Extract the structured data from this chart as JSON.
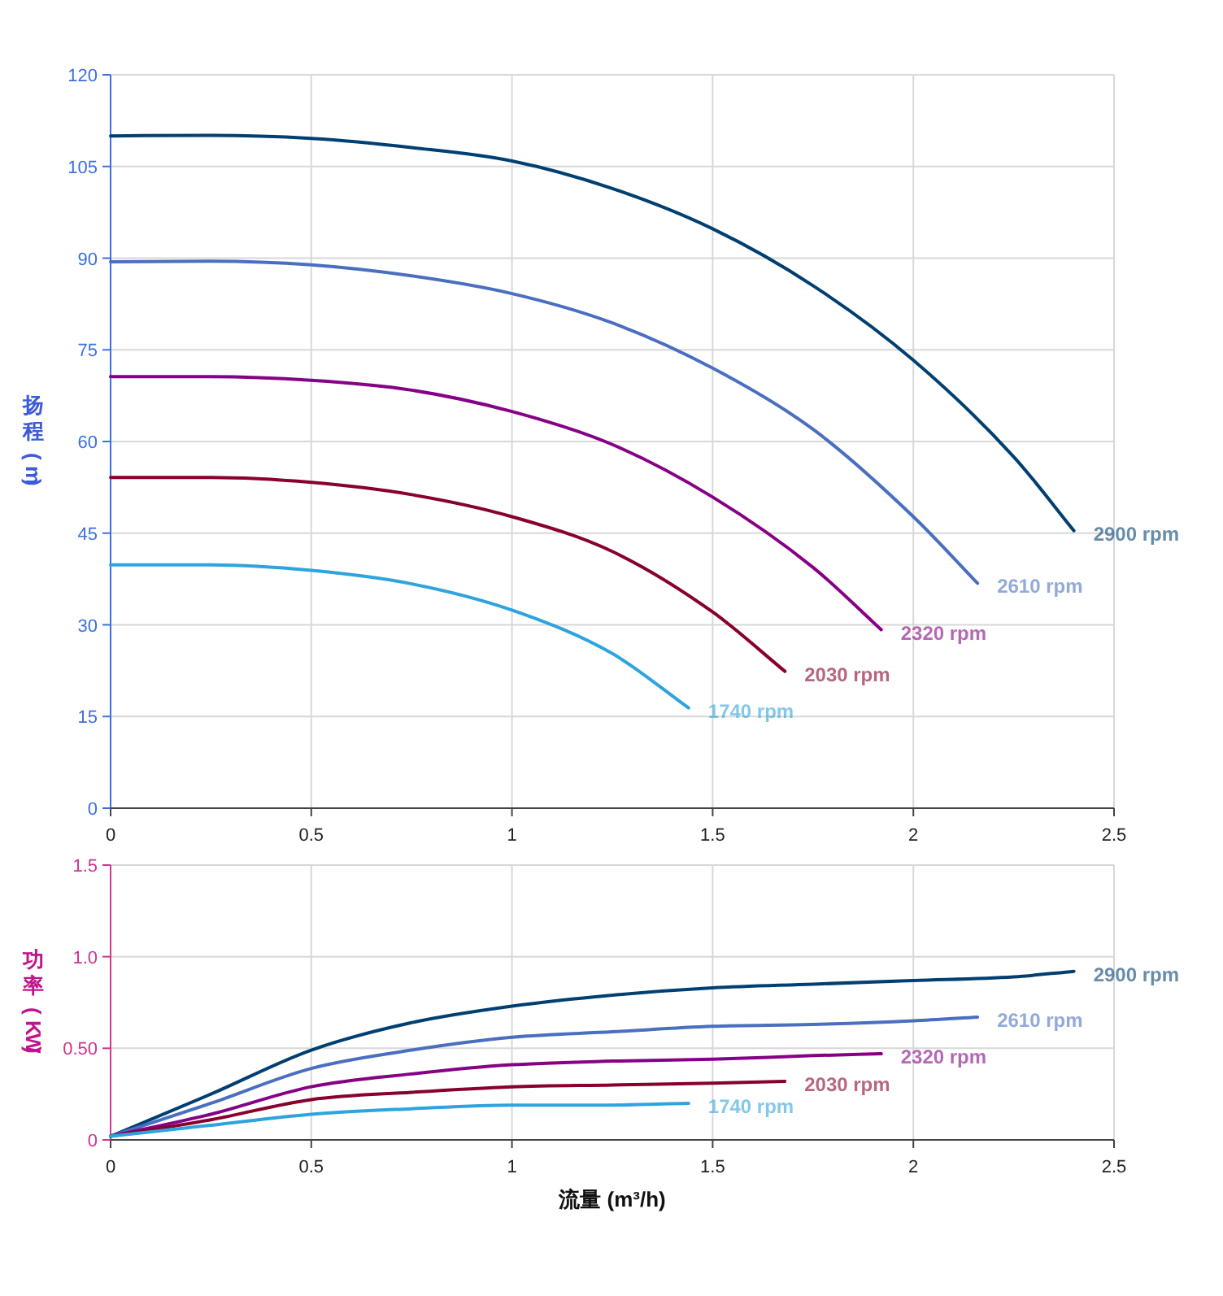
{
  "chart_data": [
    {
      "type": "line",
      "ylabel": "扬程 (m)",
      "xlim": [
        0,
        2.5
      ],
      "xticks": [
        0,
        0.5,
        1,
        1.5,
        2,
        2.5
      ],
      "ylim": [
        0,
        120
      ],
      "yticks": [
        0,
        15,
        30,
        45,
        60,
        75,
        90,
        105,
        120
      ],
      "grid": true,
      "legend": false,
      "marker": "none",
      "line_style": "solid",
      "series": [
        {
          "name": "2900 rpm",
          "color": "#003f72",
          "x": [
            0,
            0.25,
            0.5,
            0.75,
            1,
            1.25,
            1.5,
            1.75,
            2,
            2.25,
            2.4
          ],
          "values": [
            110,
            110.1,
            109.6,
            108.1,
            105.9,
            101.4,
            94.8,
            85.5,
            73.3,
            57.5,
            45.4
          ]
        },
        {
          "name": "2610 rpm",
          "color": "#4a6fc0",
          "x": [
            0,
            0.25,
            0.5,
            0.75,
            1,
            1.25,
            1.5,
            1.75,
            2,
            2.16
          ],
          "values": [
            89.4,
            89.5,
            88.9,
            87.1,
            84.2,
            79.4,
            72,
            62,
            47.7,
            36.8
          ]
        },
        {
          "name": "2320 rpm",
          "color": "#860086",
          "x": [
            0,
            0.25,
            0.5,
            0.75,
            1,
            1.25,
            1.5,
            1.75,
            1.92
          ],
          "values": [
            70.6,
            70.6,
            70,
            68.4,
            64.9,
            59.5,
            50.9,
            39.4,
            29.2
          ]
        },
        {
          "name": "2030 rpm",
          "color": "#87002f",
          "x": [
            0,
            0.25,
            0.5,
            0.75,
            1,
            1.25,
            1.5,
            1.68
          ],
          "values": [
            54.1,
            54.1,
            53.3,
            51.3,
            47.7,
            42,
            32.1,
            22.4
          ]
        },
        {
          "name": "1740 rpm",
          "color": "#2ea4de",
          "x": [
            0,
            0.25,
            0.5,
            0.75,
            1,
            1.25,
            1.44
          ],
          "values": [
            39.8,
            39.8,
            38.9,
            36.7,
            32.4,
            25.3,
            16.4
          ]
        }
      ]
    },
    {
      "type": "line",
      "ylabel": "功率 (KW)",
      "xlabel": "流量 (m³/h)",
      "xlim": [
        0,
        2.5
      ],
      "xticks": [
        0,
        0.5,
        1,
        1.5,
        2,
        2.5
      ],
      "ylim": [
        0,
        1.5
      ],
      "yticks": [
        0,
        {
          "value": 0.5,
          "label": "0.50"
        },
        {
          "value": 1,
          "label": "1.0"
        },
        {
          "value": 1.5,
          "label": "1.5"
        }
      ],
      "grid": true,
      "legend": false,
      "marker": "none",
      "line_style": "solid",
      "series": [
        {
          "name": "2900 rpm",
          "color": "#003f72",
          "x": [
            0,
            0.25,
            0.5,
            0.75,
            1,
            1.25,
            1.5,
            1.75,
            2,
            2.25,
            2.4
          ],
          "values": [
            0.02,
            0.25,
            0.49,
            0.64,
            0.73,
            0.79,
            0.83,
            0.85,
            0.87,
            0.89,
            0.92
          ]
        },
        {
          "name": "2610 rpm",
          "color": "#4a6fc0",
          "x": [
            0,
            0.25,
            0.5,
            0.75,
            1,
            1.25,
            1.5,
            1.75,
            2,
            2.16
          ],
          "values": [
            0.02,
            0.2,
            0.39,
            0.49,
            0.56,
            0.59,
            0.62,
            0.63,
            0.65,
            0.67
          ]
        },
        {
          "name": "2320 rpm",
          "color": "#860086",
          "x": [
            0,
            0.25,
            0.5,
            0.75,
            1,
            1.25,
            1.5,
            1.75,
            1.92
          ],
          "values": [
            0.02,
            0.14,
            0.29,
            0.36,
            0.41,
            0.43,
            0.44,
            0.46,
            0.47
          ]
        },
        {
          "name": "2030 rpm",
          "color": "#87002f",
          "x": [
            0,
            0.25,
            0.5,
            0.75,
            1,
            1.25,
            1.5,
            1.68
          ],
          "values": [
            0.02,
            0.11,
            0.22,
            0.26,
            0.29,
            0.3,
            0.31,
            0.32
          ]
        },
        {
          "name": "1740 rpm",
          "color": "#2ea4de",
          "x": [
            0,
            0.25,
            0.5,
            0.75,
            1,
            1.25,
            1.44
          ],
          "values": [
            0.02,
            0.08,
            0.14,
            0.17,
            0.19,
            0.19,
            0.2
          ]
        }
      ]
    }
  ]
}
